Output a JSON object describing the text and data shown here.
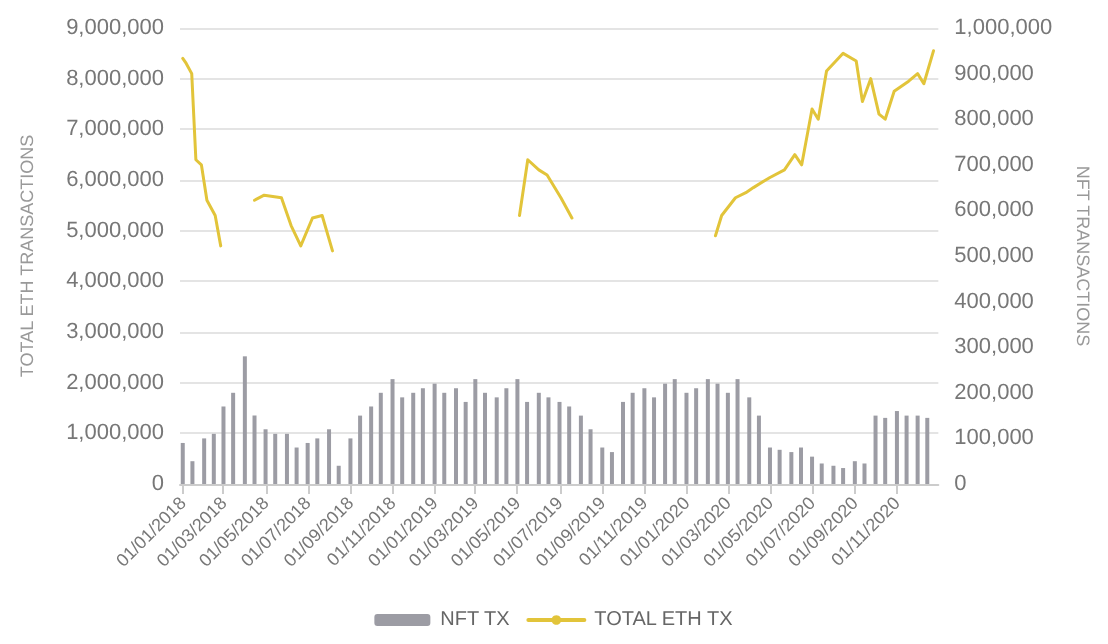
{
  "chart_data": {
    "type": "bar",
    "ylabel": "TOTAL ETH TRANSACTIONS",
    "y2label": "NFT TRANSACTIONS",
    "xlim": [
      "2017-12-28",
      "2020-12-31"
    ],
    "xticks": [
      {
        "value": "2018-01-01",
        "label": "01/01/2018"
      },
      {
        "value": "2018-03-01",
        "label": "01/03/2018"
      },
      {
        "value": "2018-05-01",
        "label": "01/05/2018"
      },
      {
        "value": "2018-07-01",
        "label": "01/07/2018"
      },
      {
        "value": "2018-09-01",
        "label": "01/09/2018"
      },
      {
        "value": "2018-11-01",
        "label": "01/11/2018"
      },
      {
        "value": "2019-01-01",
        "label": "01/01/2019"
      },
      {
        "value": "2019-03-01",
        "label": "01/03/2019"
      },
      {
        "value": "2019-05-01",
        "label": "01/05/2019"
      },
      {
        "value": "2019-07-01",
        "label": "01/07/2019"
      },
      {
        "value": "2019-09-01",
        "label": "01/09/2019"
      },
      {
        "value": "2019-11-01",
        "label": "01/11/2019"
      },
      {
        "value": "2020-01-01",
        "label": "01/01/2020"
      },
      {
        "value": "2020-03-01",
        "label": "01/03/2020"
      },
      {
        "value": "2020-05-01",
        "label": "01/05/2020"
      },
      {
        "value": "2020-07-01",
        "label": "01/07/2020"
      },
      {
        "value": "2020-09-01",
        "label": "01/09/2020"
      },
      {
        "value": "2020-11-01",
        "label": "01/11/2020"
      }
    ],
    "ylim": [
      0,
      9000000
    ],
    "yticks": [
      {
        "value": 0,
        "label": "0"
      },
      {
        "value": 1000000,
        "label": "1,000,000"
      },
      {
        "value": 2000000,
        "label": "2,000,000"
      },
      {
        "value": 3000000,
        "label": "3,000,000"
      },
      {
        "value": 4000000,
        "label": "4,000,000"
      },
      {
        "value": 5000000,
        "label": "5,000,000"
      },
      {
        "value": 6000000,
        "label": "6,000,000"
      },
      {
        "value": 7000000,
        "label": "7,000,000"
      },
      {
        "value": 8000000,
        "label": "8,000,000"
      },
      {
        "value": 9000000,
        "label": "9,000,000"
      }
    ],
    "y2lim": [
      0,
      1000000
    ],
    "y2ticks": [
      {
        "value": 0,
        "label": "0"
      },
      {
        "value": 100000,
        "label": "100,000"
      },
      {
        "value": 200000,
        "label": "200,000"
      },
      {
        "value": 300000,
        "label": "300,000"
      },
      {
        "value": 400000,
        "label": "400,000"
      },
      {
        "value": 500000,
        "label": "500,000"
      },
      {
        "value": 600000,
        "label": "600,000"
      },
      {
        "value": 700000,
        "label": "700,000"
      },
      {
        "value": 800000,
        "label": "800,000"
      },
      {
        "value": 900000,
        "label": "900,000"
      },
      {
        "value": 1000000,
        "label": "1,000,000"
      }
    ],
    "grid": "y",
    "legend": "bottom",
    "marker": "none",
    "series": [
      {
        "name": "NFT TX",
        "axis": "y2",
        "color": "#9c9ca4",
        "x": [
          "2018-01-01",
          "2018-01-15",
          "2018-02-01",
          "2018-02-15",
          "2018-03-01",
          "2018-03-15",
          "2018-04-01",
          "2018-04-15",
          "2018-05-01",
          "2018-05-15",
          "2018-06-01",
          "2018-06-15",
          "2018-07-01",
          "2018-07-15",
          "2018-08-01",
          "2018-08-15",
          "2018-09-01",
          "2018-09-15",
          "2018-10-01",
          "2018-10-15",
          "2018-11-01",
          "2018-11-15",
          "2018-12-01",
          "2018-12-15",
          "2019-01-01",
          "2019-01-15",
          "2019-02-01",
          "2019-02-15",
          "2019-03-01",
          "2019-03-15",
          "2019-04-01",
          "2019-04-15",
          "2019-05-01",
          "2019-05-15",
          "2019-06-01",
          "2019-06-15",
          "2019-07-01",
          "2019-07-15",
          "2019-08-01",
          "2019-08-15",
          "2019-09-01",
          "2019-09-15",
          "2019-10-01",
          "2019-10-15",
          "2019-11-01",
          "2019-11-15",
          "2019-12-01",
          "2019-12-15",
          "2020-01-01",
          "2020-01-15",
          "2020-02-01",
          "2020-02-15",
          "2020-03-01",
          "2020-03-15",
          "2020-04-01",
          "2020-04-15",
          "2020-05-01",
          "2020-05-15",
          "2020-06-01",
          "2020-06-15",
          "2020-07-01",
          "2020-07-15",
          "2020-08-01",
          "2020-08-15",
          "2020-09-01",
          "2020-09-15",
          "2020-10-01",
          "2020-10-15",
          "2020-11-01",
          "2020-11-15",
          "2020-12-01",
          "2020-12-15"
        ],
        "values": [
          90000,
          50000,
          100000,
          110000,
          170000,
          200000,
          280000,
          150000,
          120000,
          110000,
          110000,
          80000,
          90000,
          100000,
          120000,
          40000,
          100000,
          150000,
          170000,
          200000,
          230000,
          190000,
          200000,
          210000,
          220000,
          200000,
          210000,
          180000,
          230000,
          200000,
          190000,
          210000,
          230000,
          180000,
          200000,
          190000,
          180000,
          170000,
          150000,
          120000,
          80000,
          70000,
          180000,
          200000,
          210000,
          190000,
          220000,
          230000,
          200000,
          210000,
          230000,
          220000,
          200000,
          230000,
          190000,
          150000,
          80000,
          75000,
          70000,
          80000,
          60000,
          45000,
          40000,
          35000,
          50000,
          45000,
          150000,
          145000,
          160000,
          150000,
          150000,
          145000
        ]
      },
      {
        "name": "TOTAL ETH TX",
        "type": "line",
        "axis": "y",
        "color": "#e2c43a",
        "x": [
          "2018-01-01",
          "2018-01-06",
          "2018-01-14",
          "2018-01-20",
          "2018-01-28",
          "2018-02-05",
          "2018-02-17",
          "2018-02-25",
          "2018-03-20",
          "2018-04-15",
          "2018-04-29",
          "2018-05-24",
          "2018-06-07",
          "2018-06-21",
          "2018-07-08",
          "2018-07-22",
          "2018-08-06",
          "2018-11-01",
          "2019-05-04",
          "2019-05-16",
          "2019-06-01",
          "2019-06-13",
          "2019-07-03",
          "2019-07-19",
          "2019-10-15",
          "2020-02-12",
          "2020-02-21",
          "2020-03-12",
          "2020-03-27",
          "2020-04-07",
          "2020-05-01",
          "2020-05-22",
          "2020-06-06",
          "2020-06-16",
          "2020-07-01",
          "2020-07-10",
          "2020-07-22",
          "2020-08-15",
          "2020-09-03",
          "2020-09-12",
          "2020-09-24",
          "2020-10-06",
          "2020-10-15",
          "2020-10-28",
          "2020-11-18",
          "2020-12-01",
          "2020-12-10",
          "2020-12-24"
        ],
        "values": [
          8400000,
          8300000,
          8100000,
          6400000,
          6300000,
          5600000,
          5300000,
          4700000,
          null,
          5600000,
          5700000,
          5650000,
          5100000,
          4700000,
          5250000,
          5300000,
          4600000,
          null,
          5300000,
          6400000,
          6200000,
          6100000,
          5650000,
          5250000,
          null,
          4900000,
          5300000,
          5650000,
          5750000,
          5850000,
          6050000,
          6200000,
          6500000,
          6300000,
          7400000,
          7200000,
          8150000,
          8500000,
          8350000,
          7550000,
          8000000,
          7300000,
          7200000,
          7750000,
          7950000,
          8100000,
          7900000,
          8550000
        ]
      }
    ]
  }
}
